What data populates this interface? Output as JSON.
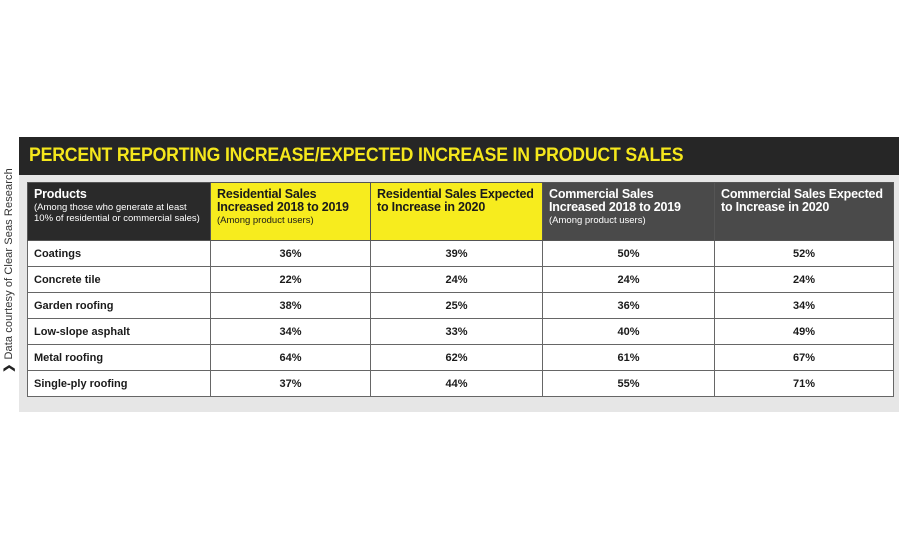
{
  "credit": {
    "chevron": "❯",
    "text": "Data courtesy of Clear Seas Research"
  },
  "colors": {
    "title_bg": "#262626",
    "title_text": "#f5e71c",
    "header_yellow": "#f7ec1e",
    "header_dark": "#2a2a2a",
    "header_mid": "#4a4a4a",
    "panel_bg": "#e6e6e6"
  },
  "chart_data": {
    "type": "table",
    "title": "PERCENT REPORTING INCREASE/EXPECTED INCREASE IN PRODUCT SALES",
    "columns": [
      {
        "main": "Products",
        "sub": "(Among those who generate at least 10% of residential or commercial sales)"
      },
      {
        "main": "Residential Sales Increased 2018 to 2019",
        "sub": "(Among product users)"
      },
      {
        "main": "Residential Sales Expected to Increase in 2020",
        "sub": ""
      },
      {
        "main": "Commercial Sales Increased 2018 to 2019",
        "sub": "(Among product users)"
      },
      {
        "main": "Commercial Sales Expected to Increase in 2020",
        "sub": ""
      }
    ],
    "rows": [
      {
        "product": "Coatings",
        "values": [
          "36%",
          "39%",
          "50%",
          "52%"
        ]
      },
      {
        "product": "Concrete tile",
        "values": [
          "22%",
          "24%",
          "24%",
          "24%"
        ]
      },
      {
        "product": "Garden roofing",
        "values": [
          "38%",
          "25%",
          "36%",
          "34%"
        ]
      },
      {
        "product": "Low-slope asphalt",
        "values": [
          "34%",
          "33%",
          "40%",
          "49%"
        ]
      },
      {
        "product": "Metal roofing",
        "values": [
          "64%",
          "62%",
          "61%",
          "67%"
        ]
      },
      {
        "product": "Single-ply roofing",
        "values": [
          "37%",
          "44%",
          "55%",
          "71%"
        ]
      }
    ]
  }
}
